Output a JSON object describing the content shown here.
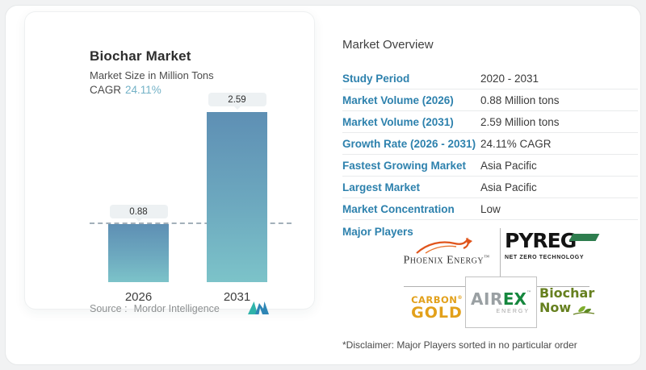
{
  "colors": {
    "label_blue": "#2d81ad",
    "cagr_teal": "#74b2c7",
    "bar_gradient_top": "#5e8fb4",
    "bar_gradient_bottom": "#7cc3c9",
    "pyreg_green": "#2e7d4e",
    "carbon_gold_amber": "#e2a01a",
    "airex_green": "#16873e",
    "airex_gray": "#9aa0a3",
    "biochar_now_olive": "#66801f",
    "phoenix_orange": "#e0551c",
    "mordor_teal": "#2fb3aa",
    "mordor_blue": "#2e86b5"
  },
  "card": {
    "title": "Biochar Market",
    "subtitle": "Market Size in Million Tons",
    "cagr_label": "CAGR",
    "cagr_value": "24.11%",
    "source_prefix": "Source :",
    "source_name": "Mordor Intelligence"
  },
  "chart_data": {
    "type": "bar",
    "title": "Biochar Market",
    "subtitle": "Market Size in Million Tons",
    "cagr": "24.11%",
    "categories": [
      "2026",
      "2031"
    ],
    "values": [
      0.88,
      2.59
    ],
    "data_labels": [
      "0.88",
      "2.59"
    ],
    "ylim": [
      0,
      2.59
    ],
    "grid": false,
    "reference_line": 0.88,
    "legend": "none"
  },
  "overview": {
    "heading": "Market Overview",
    "rows": [
      {
        "label": "Study Period",
        "value": "2020 - 2031"
      },
      {
        "label": "Market Volume (2026)",
        "value": "0.88 Million tons"
      },
      {
        "label": "Market Volume (2031)",
        "value": "2.59 Million tons"
      },
      {
        "label": "Growth Rate (2026 - 2031)",
        "value": "24.11% CAGR"
      },
      {
        "label": "Fastest Growing Market",
        "value": "Asia Pacific"
      },
      {
        "label": "Largest Market",
        "value": "Asia Pacific"
      },
      {
        "label": "Market Concentration",
        "value": "Low"
      }
    ],
    "major_players_label": "Major Players",
    "disclaimer": "*Disclaimer: Major Players sorted in no particular order"
  },
  "logos": {
    "phoenix": {
      "name": "Phoenix Energy",
      "tm": "™"
    },
    "pyreg": {
      "name": "PYREG",
      "tagline": "NET ZERO TECHNOLOGY"
    },
    "carbon_gold": {
      "line1": "CARBON",
      "reg": "®",
      "line2": "GOLD"
    },
    "airex": {
      "part1": "AIR",
      "part2": "EX",
      "tm": "™",
      "sub": "ENERGY"
    },
    "biochar_now": {
      "line1": "Biochar",
      "line2": "Now"
    }
  }
}
